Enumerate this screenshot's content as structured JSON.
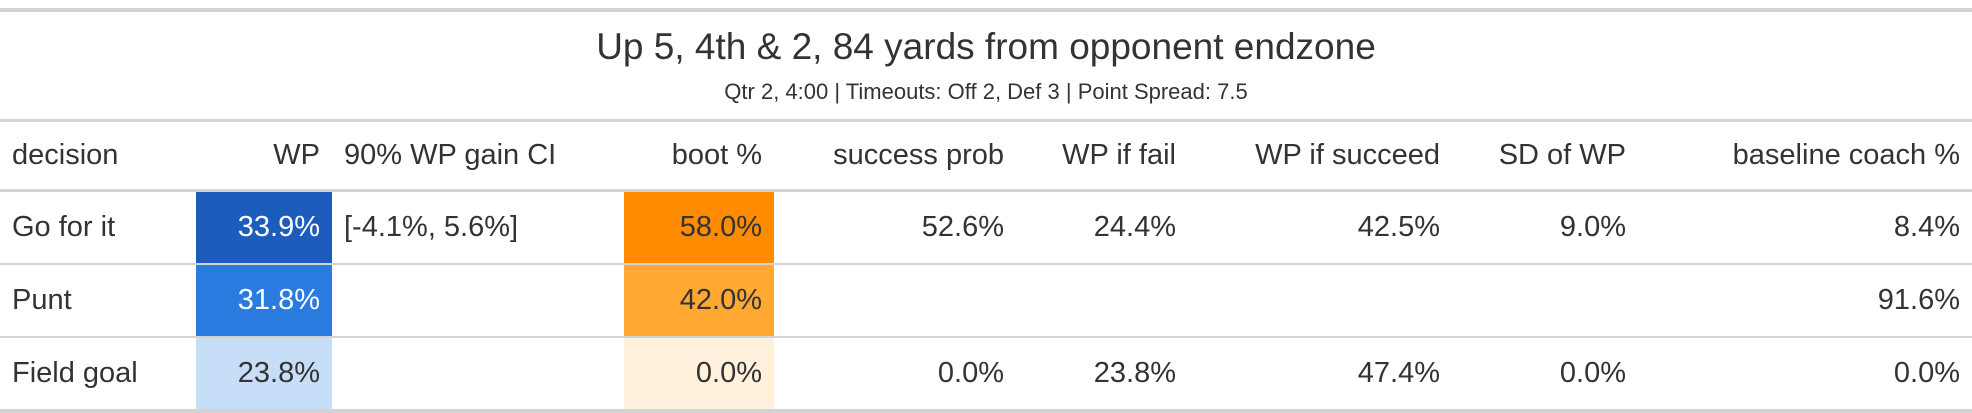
{
  "title": "Up 5, 4th & 2, 84 yards from opponent endzone",
  "subtitle": "Qtr 2, 4:00 | Timeouts: Off 2, Def 3 | Point Spread: 7.5",
  "columns": {
    "decision": "decision",
    "wp": "WP",
    "ci": "90% WP gain CI",
    "boot": "boot %",
    "success_prob": "success prob",
    "wp_fail": "WP if fail",
    "wp_succeed": "WP if succeed",
    "sd_wp": "SD of WP",
    "baseline": "baseline coach %"
  },
  "rows": [
    {
      "decision": "Go for it",
      "wp": "33.9%",
      "ci": "[-4.1%, 5.6%]",
      "boot": "58.0%",
      "success_prob": "52.6%",
      "wp_fail": "24.4%",
      "wp_succeed": "42.5%",
      "sd_wp": "9.0%",
      "baseline": "8.4%",
      "wp_color": "#1c5cbd",
      "boot_color": "#ff8c00"
    },
    {
      "decision": "Punt",
      "wp": "31.8%",
      "ci": "",
      "boot": "42.0%",
      "success_prob": "",
      "wp_fail": "",
      "wp_succeed": "",
      "sd_wp": "",
      "baseline": "91.6%",
      "wp_color": "#2a7be0",
      "boot_color": "#ffa933"
    },
    {
      "decision": "Field goal",
      "wp": "23.8%",
      "ci": "",
      "boot": "0.0%",
      "success_prob": "0.0%",
      "wp_fail": "23.8%",
      "wp_succeed": "47.4%",
      "sd_wp": "0.0%",
      "baseline": "0.0%",
      "wp_color": "#c6def7",
      "boot_color": "#fff1dc"
    }
  ]
}
